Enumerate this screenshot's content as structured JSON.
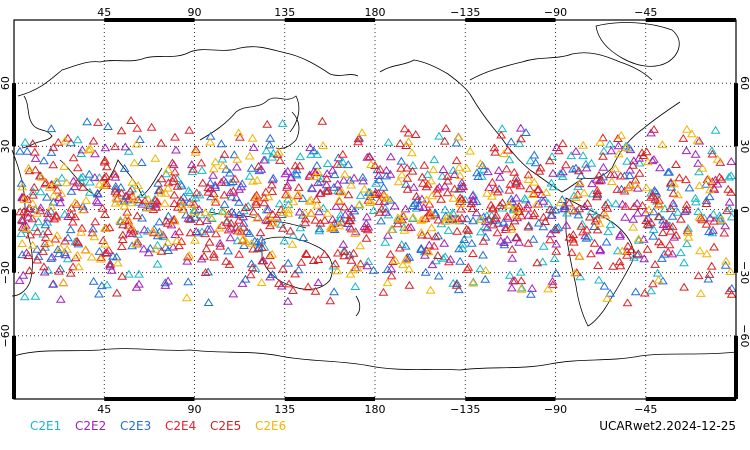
{
  "chart_data": {
    "type": "scatter",
    "projection": "cylindrical-equidistant",
    "center_lon": 180,
    "lon_range": [
      0,
      360
    ],
    "lat_range": [
      -90,
      90
    ],
    "marker": "open-triangle",
    "x_ticks": [
      {
        "lon": 45,
        "label": "45"
      },
      {
        "lon": 90,
        "label": "90"
      },
      {
        "lon": 135,
        "label": "135"
      },
      {
        "lon": 180,
        "label": "180"
      },
      {
        "lon": 225,
        "label": "−135"
      },
      {
        "lon": 270,
        "label": "−90"
      },
      {
        "lon": 315,
        "label": "−45"
      }
    ],
    "y_ticks": [
      {
        "lat": 60,
        "label": "60"
      },
      {
        "lat": 30,
        "label": "30"
      },
      {
        "lat": 0,
        "label": "0"
      },
      {
        "lat": -30,
        "label": "−30"
      },
      {
        "lat": -60,
        "label": "−60"
      }
    ],
    "grid": true,
    "series": [
      {
        "name": "C2E1",
        "color": "#17b8c8"
      },
      {
        "name": "C2E2",
        "color": "#a020c0"
      },
      {
        "name": "C2E3",
        "color": "#1f6fd6"
      },
      {
        "name": "C2E4",
        "color": "#e8202a"
      },
      {
        "name": "C2E5",
        "color": "#d62020"
      },
      {
        "name": "C2E6",
        "color": "#f4b400"
      }
    ],
    "coverage_lat": [
      -45,
      45
    ],
    "caption": "UCARwet2.2024-12-25"
  }
}
